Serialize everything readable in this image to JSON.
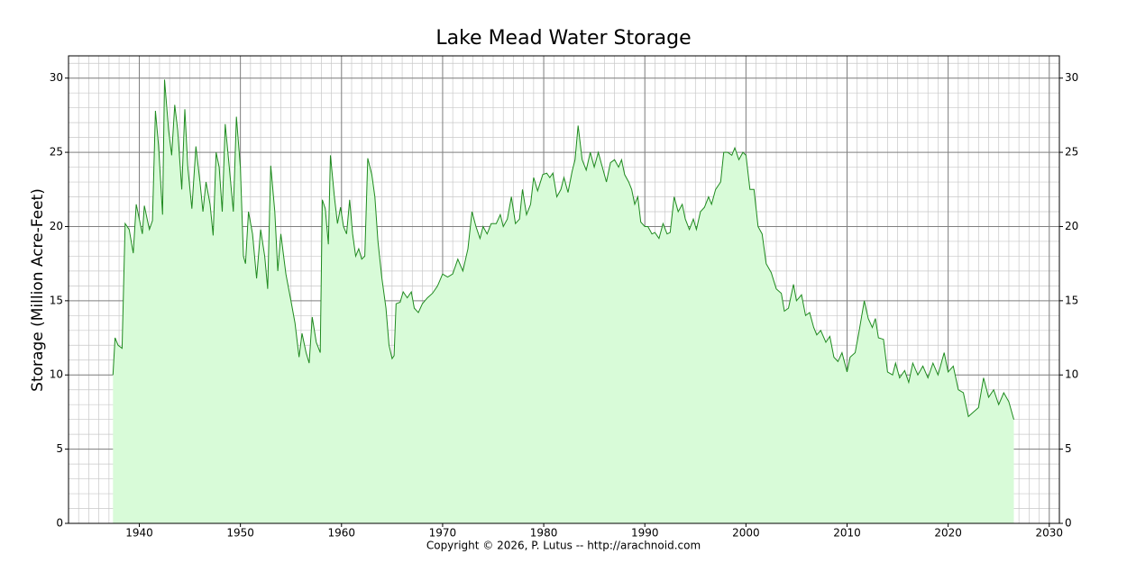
{
  "chart_data": {
    "type": "area",
    "title": "Lake Mead Water Storage",
    "y_label": "Storage (Million Acre-Feet)",
    "footer": "Copyright © 2026, P. Lutus -- http://arachnoid.com",
    "line_color": "#1f8a1f",
    "fill_color": "#d8fbd8",
    "xlim": [
      1933,
      2031
    ],
    "ylim": [
      0,
      31.5
    ],
    "xticks": [
      1940,
      1950,
      1960,
      1970,
      1980,
      1990,
      2000,
      2010,
      2020,
      2030
    ],
    "yticks": [
      0,
      5,
      10,
      15,
      20,
      25,
      30
    ],
    "right_axis": true,
    "grid": true,
    "minor_xstep": 1,
    "minor_ystep": 1,
    "x": [
      1937.4,
      1937.6,
      1937.9,
      1938.3,
      1938.6,
      1939.0,
      1939.4,
      1939.7,
      1940.0,
      1940.3,
      1940.5,
      1941.0,
      1941.3,
      1941.6,
      1941.9,
      1942.3,
      1942.5,
      1942.9,
      1943.2,
      1943.5,
      1943.8,
      1944.2,
      1944.5,
      1944.8,
      1945.2,
      1945.6,
      1946.0,
      1946.3,
      1946.6,
      1947.0,
      1947.3,
      1947.6,
      1947.9,
      1948.2,
      1948.5,
      1948.9,
      1949.3,
      1949.6,
      1950.0,
      1950.3,
      1950.5,
      1950.8,
      1951.2,
      1951.6,
      1952.0,
      1952.4,
      1952.7,
      1953.0,
      1953.4,
      1953.7,
      1954.0,
      1954.5,
      1955.0,
      1955.4,
      1955.8,
      1956.1,
      1956.5,
      1956.8,
      1957.1,
      1957.5,
      1957.9,
      1958.1,
      1958.4,
      1958.7,
      1958.9,
      1959.3,
      1959.6,
      1959.9,
      1960.2,
      1960.5,
      1960.8,
      1961.1,
      1961.4,
      1961.7,
      1962.0,
      1962.3,
      1962.6,
      1963.0,
      1963.3,
      1963.6,
      1964.0,
      1964.4,
      1964.7,
      1965.0,
      1965.2,
      1965.4,
      1965.8,
      1966.1,
      1966.5,
      1966.9,
      1967.2,
      1967.6,
      1968.0,
      1968.5,
      1969.0,
      1969.5,
      1970.0,
      1970.5,
      1971.0,
      1971.5,
      1972.0,
      1972.5,
      1972.9,
      1973.3,
      1973.7,
      1974.0,
      1974.4,
      1974.8,
      1975.3,
      1975.7,
      1976.0,
      1976.4,
      1976.8,
      1977.2,
      1977.6,
      1977.9,
      1978.3,
      1978.7,
      1979.0,
      1979.4,
      1979.9,
      1980.3,
      1980.6,
      1980.9,
      1981.3,
      1981.7,
      1982.0,
      1982.4,
      1982.8,
      1983.1,
      1983.4,
      1983.8,
      1984.2,
      1984.6,
      1985.0,
      1985.4,
      1985.8,
      1986.2,
      1986.6,
      1987.0,
      1987.4,
      1987.7,
      1988.0,
      1988.4,
      1988.7,
      1989.0,
      1989.3,
      1989.6,
      1990.0,
      1990.3,
      1990.7,
      1991.0,
      1991.4,
      1991.8,
      1992.2,
      1992.5,
      1992.9,
      1993.3,
      1993.7,
      1994.0,
      1994.4,
      1994.8,
      1995.1,
      1995.5,
      1995.9,
      1996.3,
      1996.6,
      1997.0,
      1997.5,
      1997.8,
      1998.2,
      1998.6,
      1998.9,
      1999.3,
      1999.7,
      2000.0,
      2000.4,
      2000.8,
      2001.2,
      2001.6,
      2002.0,
      2002.5,
      2003.0,
      2003.5,
      2003.8,
      2004.2,
      2004.7,
      2005.0,
      2005.5,
      2005.9,
      2006.3,
      2006.7,
      2007.0,
      2007.4,
      2007.9,
      2008.3,
      2008.7,
      2009.1,
      2009.5,
      2010.0,
      2010.3,
      2010.8,
      2011.2,
      2011.7,
      2012.1,
      2012.5,
      2012.8,
      2013.1,
      2013.6,
      2014.0,
      2014.5,
      2014.8,
      2015.2,
      2015.7,
      2016.1,
      2016.5,
      2017.0,
      2017.5,
      2018.0,
      2018.5,
      2019.0,
      2019.6,
      2020.0,
      2020.5,
      2021.0,
      2021.5,
      2022.0,
      2022.5,
      2023.0,
      2023.5,
      2024.0,
      2024.5,
      2025.0,
      2025.5,
      2026.0,
      2026.5
    ],
    "values": [
      10.0,
      12.5,
      12.0,
      11.8,
      20.2,
      19.8,
      18.2,
      21.5,
      20.5,
      19.5,
      21.4,
      19.8,
      20.4,
      27.8,
      25.5,
      20.8,
      29.9,
      26.5,
      24.8,
      28.2,
      26.5,
      22.5,
      27.9,
      24.0,
      21.2,
      25.4,
      23.0,
      21.0,
      23.0,
      21.5,
      19.4,
      25.0,
      24.0,
      21.0,
      26.9,
      24.0,
      21.0,
      27.4,
      24.0,
      18.0,
      17.5,
      21.0,
      19.5,
      16.5,
      19.8,
      18.0,
      15.8,
      24.1,
      21.0,
      17.0,
      19.5,
      16.8,
      15.0,
      13.5,
      11.2,
      12.8,
      11.5,
      10.8,
      13.9,
      12.2,
      11.5,
      21.8,
      21.2,
      18.8,
      24.8,
      22.0,
      20.2,
      21.3,
      20.0,
      19.5,
      21.8,
      19.5,
      18.0,
      18.5,
      17.8,
      18.0,
      24.6,
      23.5,
      22.0,
      19.0,
      16.5,
      14.5,
      12.0,
      11.1,
      11.3,
      14.8,
      14.9,
      15.6,
      15.2,
      15.6,
      14.5,
      14.2,
      14.8,
      15.2,
      15.5,
      16.0,
      16.8,
      16.6,
      16.8,
      17.8,
      17.0,
      18.5,
      21.0,
      20.0,
      19.2,
      20.0,
      19.5,
      20.2,
      20.2,
      20.8,
      20.0,
      20.5,
      22.0,
      20.2,
      20.5,
      22.5,
      20.8,
      21.5,
      23.3,
      22.4,
      23.5,
      23.6,
      23.3,
      23.6,
      22.0,
      22.5,
      23.3,
      22.3,
      23.7,
      24.5,
      26.8,
      24.5,
      23.8,
      25.0,
      24.0,
      25.0,
      24.0,
      23.0,
      24.3,
      24.5,
      24.0,
      24.5,
      23.5,
      23.0,
      22.5,
      21.5,
      22.0,
      20.3,
      20.0,
      20.0,
      19.5,
      19.6,
      19.2,
      20.2,
      19.5,
      19.6,
      22.0,
      21.0,
      21.5,
      20.5,
      19.8,
      20.5,
      19.8,
      21.0,
      21.3,
      22.0,
      21.5,
      22.5,
      23.0,
      25.0,
      25.0,
      24.8,
      25.3,
      24.5,
      25.0,
      24.8,
      22.5,
      22.5,
      20.0,
      19.5,
      17.5,
      16.9,
      15.8,
      15.5,
      14.3,
      14.5,
      16.1,
      15.0,
      15.4,
      14.0,
      14.2,
      13.2,
      12.7,
      13.0,
      12.2,
      12.6,
      11.2,
      10.9,
      11.5,
      10.2,
      11.2,
      11.5,
      13.0,
      15.0,
      13.8,
      13.2,
      13.8,
      12.5,
      12.4,
      10.2,
      10.0,
      10.8,
      9.8,
      10.3,
      9.5,
      10.8,
      10.0,
      10.6,
      9.8,
      10.8,
      10.0,
      11.5,
      10.2,
      10.6,
      9.0,
      8.8,
      7.2,
      7.5,
      7.8,
      9.8,
      8.5,
      9.0,
      8.0,
      8.8,
      8.2,
      7.0
    ]
  }
}
